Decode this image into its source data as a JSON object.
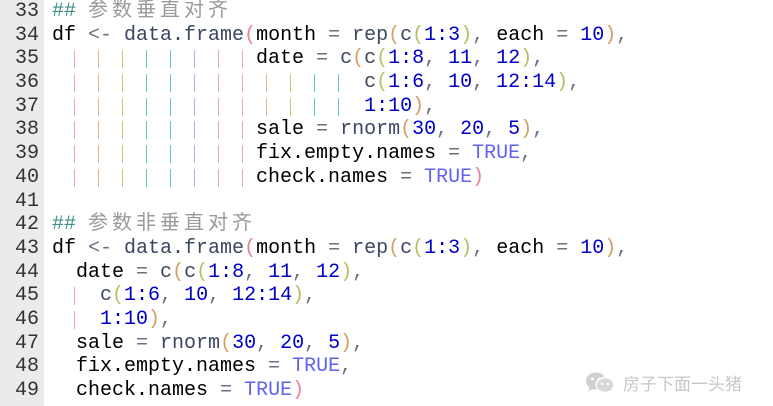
{
  "editor": {
    "guide_colors": [
      "#f2a6bc",
      "#e2b486",
      "#c4cc74",
      "#62d0b0",
      "#66c2d8",
      "#aab2e8",
      "#e2a2d8"
    ],
    "lines": [
      {
        "n": "33",
        "guides": 0,
        "tokens": [
          [
            "hash",
            "## "
          ],
          [
            "cmt",
            "参数垂直对齐"
          ]
        ]
      },
      {
        "n": "34",
        "guides": 0,
        "tokens": [
          [
            "id",
            "df"
          ],
          [
            "op",
            " <- "
          ],
          [
            "fn",
            "data.frame"
          ],
          [
            "p1",
            "("
          ],
          [
            "id",
            "month"
          ],
          [
            "op",
            " = "
          ],
          [
            "fn",
            "rep"
          ],
          [
            "p2",
            "("
          ],
          [
            "fn",
            "c"
          ],
          [
            "p3",
            "("
          ],
          [
            "num",
            "1:3"
          ],
          [
            "p3",
            ")"
          ],
          [
            "op",
            ", "
          ],
          [
            "id",
            "each"
          ],
          [
            "op",
            " = "
          ],
          [
            "num",
            "10"
          ],
          [
            "p2",
            ")"
          ],
          [
            "op",
            ","
          ]
        ]
      },
      {
        "n": "35",
        "guides": 8,
        "tokens": [
          [
            "sp",
            "                 "
          ],
          [
            "id",
            "date"
          ],
          [
            "op",
            " = "
          ],
          [
            "fn",
            "c"
          ],
          [
            "p2",
            "("
          ],
          [
            "fn",
            "c"
          ],
          [
            "p3",
            "("
          ],
          [
            "num",
            "1:8"
          ],
          [
            "op",
            ", "
          ],
          [
            "num",
            "11"
          ],
          [
            "op",
            ", "
          ],
          [
            "num",
            "12"
          ],
          [
            "p3",
            ")"
          ],
          [
            "op",
            ","
          ]
        ]
      },
      {
        "n": "36",
        "guides": 12,
        "tokens": [
          [
            "sp",
            "                          "
          ],
          [
            "fn",
            "c"
          ],
          [
            "p3",
            "("
          ],
          [
            "num",
            "1:6"
          ],
          [
            "op",
            ", "
          ],
          [
            "num",
            "10"
          ],
          [
            "op",
            ", "
          ],
          [
            "num",
            "12:14"
          ],
          [
            "p3",
            ")"
          ],
          [
            "op",
            ","
          ]
        ]
      },
      {
        "n": "37",
        "guides": 12,
        "tokens": [
          [
            "sp",
            "                          "
          ],
          [
            "num",
            "1:10"
          ],
          [
            "p2",
            ")"
          ],
          [
            "op",
            ","
          ]
        ]
      },
      {
        "n": "38",
        "guides": 8,
        "tokens": [
          [
            "sp",
            "                 "
          ],
          [
            "id",
            "sale"
          ],
          [
            "op",
            " = "
          ],
          [
            "fn",
            "rnorm"
          ],
          [
            "p2",
            "("
          ],
          [
            "num",
            "30"
          ],
          [
            "op",
            ", "
          ],
          [
            "num",
            "20"
          ],
          [
            "op",
            ", "
          ],
          [
            "num",
            "5"
          ],
          [
            "p2",
            ")"
          ],
          [
            "op",
            ","
          ]
        ]
      },
      {
        "n": "39",
        "guides": 8,
        "tokens": [
          [
            "sp",
            "                 "
          ],
          [
            "id",
            "fix.empty.names"
          ],
          [
            "op",
            " = "
          ],
          [
            "kw",
            "TRUE"
          ],
          [
            "op",
            ","
          ]
        ]
      },
      {
        "n": "40",
        "guides": 8,
        "tokens": [
          [
            "sp",
            "                 "
          ],
          [
            "id",
            "check.names"
          ],
          [
            "op",
            " = "
          ],
          [
            "kw",
            "TRUE"
          ],
          [
            "p1",
            ")"
          ]
        ]
      },
      {
        "n": "41",
        "guides": 0,
        "tokens": []
      },
      {
        "n": "42",
        "guides": 0,
        "tokens": [
          [
            "hash",
            "## "
          ],
          [
            "cmt",
            "参数非垂直对齐"
          ]
        ]
      },
      {
        "n": "43",
        "guides": 0,
        "tokens": [
          [
            "id",
            "df"
          ],
          [
            "op",
            " <- "
          ],
          [
            "fn",
            "data.frame"
          ],
          [
            "p1",
            "("
          ],
          [
            "id",
            "month"
          ],
          [
            "op",
            " = "
          ],
          [
            "fn",
            "rep"
          ],
          [
            "p2",
            "("
          ],
          [
            "fn",
            "c"
          ],
          [
            "p3",
            "("
          ],
          [
            "num",
            "1:3"
          ],
          [
            "p3",
            ")"
          ],
          [
            "op",
            ", "
          ],
          [
            "id",
            "each"
          ],
          [
            "op",
            " = "
          ],
          [
            "num",
            "10"
          ],
          [
            "p2",
            ")"
          ],
          [
            "op",
            ","
          ]
        ]
      },
      {
        "n": "44",
        "guides": 0,
        "tokens": [
          [
            "sp",
            "  "
          ],
          [
            "id",
            "date"
          ],
          [
            "op",
            " = "
          ],
          [
            "fn",
            "c"
          ],
          [
            "p2",
            "("
          ],
          [
            "fn",
            "c"
          ],
          [
            "p3",
            "("
          ],
          [
            "num",
            "1:8"
          ],
          [
            "op",
            ", "
          ],
          [
            "num",
            "11"
          ],
          [
            "op",
            ", "
          ],
          [
            "num",
            "12"
          ],
          [
            "p3",
            ")"
          ],
          [
            "op",
            ","
          ]
        ]
      },
      {
        "n": "45",
        "guides": 1,
        "tokens": [
          [
            "sp",
            "    "
          ],
          [
            "fn",
            "c"
          ],
          [
            "p3",
            "("
          ],
          [
            "num",
            "1:6"
          ],
          [
            "op",
            ", "
          ],
          [
            "num",
            "10"
          ],
          [
            "op",
            ", "
          ],
          [
            "num",
            "12:14"
          ],
          [
            "p3",
            ")"
          ],
          [
            "op",
            ","
          ]
        ]
      },
      {
        "n": "46",
        "guides": 1,
        "tokens": [
          [
            "sp",
            "    "
          ],
          [
            "num",
            "1:10"
          ],
          [
            "p2",
            ")"
          ],
          [
            "op",
            ","
          ]
        ]
      },
      {
        "n": "47",
        "guides": 0,
        "tokens": [
          [
            "sp",
            "  "
          ],
          [
            "id",
            "sale"
          ],
          [
            "op",
            " = "
          ],
          [
            "fn",
            "rnorm"
          ],
          [
            "p2",
            "("
          ],
          [
            "num",
            "30"
          ],
          [
            "op",
            ", "
          ],
          [
            "num",
            "20"
          ],
          [
            "op",
            ", "
          ],
          [
            "num",
            "5"
          ],
          [
            "p2",
            ")"
          ],
          [
            "op",
            ","
          ]
        ]
      },
      {
        "n": "48",
        "guides": 0,
        "tokens": [
          [
            "sp",
            "  "
          ],
          [
            "id",
            "fix.empty.names"
          ],
          [
            "op",
            " = "
          ],
          [
            "kw",
            "TRUE"
          ],
          [
            "op",
            ","
          ]
        ]
      },
      {
        "n": "49",
        "guides": 0,
        "tokens": [
          [
            "sp",
            "  "
          ],
          [
            "id",
            "check.names"
          ],
          [
            "op",
            " = "
          ],
          [
            "kw",
            "TRUE"
          ],
          [
            "p1",
            ")"
          ]
        ]
      }
    ]
  },
  "watermark": {
    "icon": "wechat-icon",
    "text": "房子下面一头猪"
  }
}
